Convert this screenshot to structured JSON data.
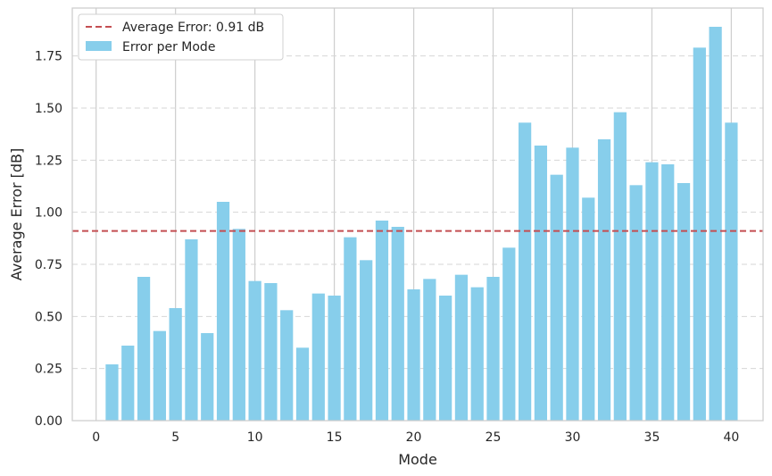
{
  "chart_data": {
    "type": "bar",
    "xlabel": "Mode",
    "ylabel": "Average Error [dB]",
    "xlim": [
      -1.5,
      42
    ],
    "ylim": [
      0,
      1.98
    ],
    "x_ticks": [
      0,
      5,
      10,
      15,
      20,
      25,
      30,
      35,
      40
    ],
    "x_tick_labels": [
      "0",
      "5",
      "10",
      "15",
      "20",
      "25",
      "30",
      "35",
      "40"
    ],
    "y_ticks": [
      0,
      0.25,
      0.5,
      0.75,
      1.0,
      1.25,
      1.5,
      1.75
    ],
    "y_tick_labels": [
      "0.00",
      "0.25",
      "0.50",
      "0.75",
      "1.00",
      "1.25",
      "1.50",
      "1.75"
    ],
    "grid": true,
    "legend_position": "top-left",
    "series": [
      {
        "name": "Error per Mode",
        "kind": "bar",
        "color": "#87ceeb",
        "x": [
          1,
          2,
          3,
          4,
          5,
          6,
          7,
          8,
          9,
          10,
          11,
          12,
          13,
          14,
          15,
          16,
          17,
          18,
          19,
          20,
          21,
          22,
          23,
          24,
          25,
          26,
          27,
          28,
          29,
          30,
          31,
          32,
          33,
          34,
          35,
          36,
          37,
          38,
          39,
          40
        ],
        "values": [
          0.27,
          0.36,
          0.69,
          0.43,
          0.54,
          0.87,
          0.42,
          1.05,
          0.92,
          0.67,
          0.66,
          0.53,
          0.35,
          0.61,
          0.6,
          0.88,
          0.77,
          0.96,
          0.93,
          0.63,
          0.68,
          0.6,
          0.7,
          0.64,
          0.69,
          0.83,
          1.43,
          1.32,
          1.18,
          1.31,
          1.07,
          1.35,
          1.48,
          1.13,
          1.24,
          1.23,
          1.14,
          1.79,
          1.89,
          1.43
        ]
      },
      {
        "name": "Average Error: 0.91 dB",
        "kind": "hline",
        "value": 0.91,
        "color": "#c44e52",
        "style": "dashed"
      }
    ]
  }
}
